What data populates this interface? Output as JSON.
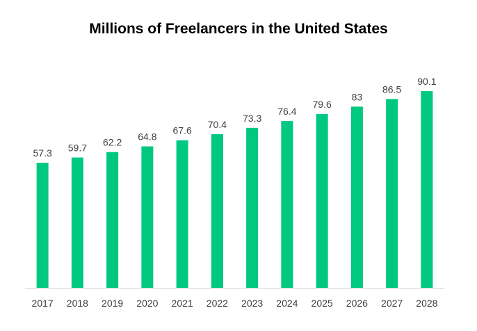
{
  "chart_data": {
    "type": "bar",
    "title": "Millions of Freelancers in the United States",
    "categories": [
      "2017",
      "2018",
      "2019",
      "2020",
      "2021",
      "2022",
      "2023",
      "2024",
      "2025",
      "2026",
      "2027",
      "2028"
    ],
    "values": [
      57.3,
      59.7,
      62.2,
      64.8,
      67.6,
      70.4,
      73.3,
      76.4,
      79.6,
      83,
      86.5,
      90.1
    ],
    "value_labels": [
      "57.3",
      "59.7",
      "62.2",
      "64.8",
      "67.6",
      "70.4",
      "73.3",
      "76.4",
      "79.6",
      "83",
      "86.5",
      "90.1"
    ],
    "xlabel": "",
    "ylabel": "",
    "ylim": [
      0,
      100
    ],
    "bar_color": "#00C880",
    "axis_color": "#D9D9D9",
    "grid": false,
    "legend": false
  }
}
